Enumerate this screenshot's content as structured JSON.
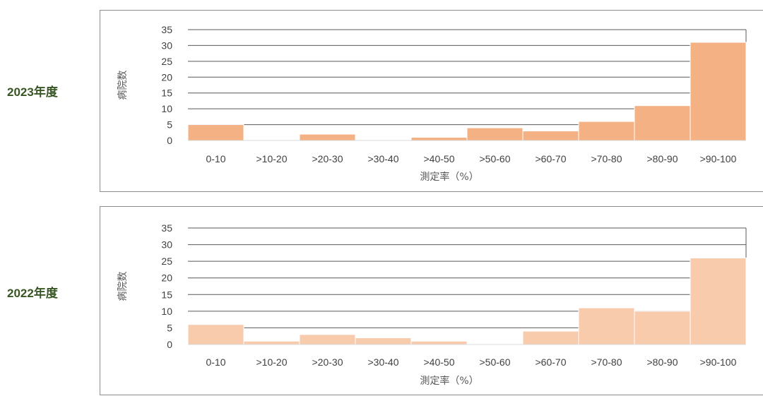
{
  "charts": [
    {
      "year_label": "2023年度"
    },
    {
      "year_label": "2022年度"
    }
  ],
  "chart_data": [
    {
      "type": "bar",
      "title": "2023年度",
      "xlabel": "測定率（%）",
      "ylabel": "病院数",
      "categories": [
        "0-10",
        ">10-20",
        ">20-30",
        ">30-40",
        ">40-50",
        ">50-60",
        ">60-70",
        ">70-80",
        ">80-90",
        ">90-100"
      ],
      "values": [
        5,
        0,
        2,
        0,
        1,
        4,
        3,
        6,
        11,
        31
      ],
      "ylim": [
        0,
        35
      ],
      "yticks": [
        0,
        5,
        10,
        15,
        20,
        25,
        30,
        35
      ],
      "grid": true,
      "bar_color": "#f4b183"
    },
    {
      "type": "bar",
      "title": "2022年度",
      "xlabel": "測定率（%）",
      "ylabel": "病院数",
      "categories": [
        "0-10",
        ">10-20",
        ">20-30",
        ">30-40",
        ">40-50",
        ">50-60",
        ">60-70",
        ">70-80",
        ">80-90",
        ">90-100"
      ],
      "values": [
        6,
        1,
        3,
        2,
        1,
        0,
        4,
        11,
        10,
        26
      ],
      "ylim": [
        0,
        35
      ],
      "yticks": [
        0,
        5,
        10,
        15,
        20,
        25,
        30,
        35
      ],
      "grid": true,
      "bar_color": "#f8cbad"
    }
  ]
}
